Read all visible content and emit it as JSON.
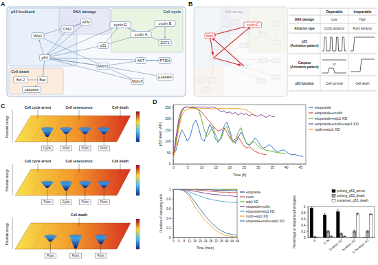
{
  "panels": {
    "A": {
      "label": "A",
      "modules": [
        "p53 feedback",
        "DNA damage",
        "Cell cycle",
        "Cell death"
      ],
      "nodes": [
        "ATM",
        "Chk2",
        "Wip1",
        "cyclin E",
        "cyclin A",
        "cyclin B",
        "E2F1",
        "p21",
        "AKT",
        "PTEN",
        "p53",
        "Mdm2",
        "p14ARF",
        "MdmX",
        "Bcl-2",
        "Bax",
        "caspase"
      ]
    },
    "B": {
      "label": "B",
      "modules": [
        "DNA damage"
      ],
      "nodes": [
        "cyclin E",
        "Wip1"
      ],
      "table": {
        "columns": [
          "Reparable",
          "Irreparable"
        ],
        "rows": [
          {
            "label": [
              "DNA damage"
            ],
            "cells": [
              "Low",
              "High"
            ]
          },
          {
            "label": [
              "Attractor type"
            ],
            "cells": [
              "Cyclic attractor",
              "Point attractor"
            ]
          },
          {
            "label": [
              "p53",
              "(Activation pattern)"
            ]
          },
          {
            "label": [
              "Caspase",
              "(Activation pattern)"
            ],
            "between": "or"
          },
          {
            "label": [
              "p53 function"
            ],
            "cells": [
              "Cell survival",
              "Cell death"
            ]
          }
        ]
      }
    },
    "C": {
      "label": "C",
      "axis_label": "Potential energy",
      "landscapes": [
        {
          "phenotypes": [
            "Cell cycle arrest",
            "Cell senescence",
            "Cell death"
          ],
          "attractors": [
            "Cycle",
            "Point",
            "Point",
            "Point"
          ]
        },
        {
          "phenotypes": [
            "Cell cycle arrest",
            "Cell senescence",
            "Cell death"
          ],
          "attractors": [
            "Point",
            "Cycle",
            "Point",
            "Point"
          ]
        },
        {
          "phenotypes": [
            "Cell death"
          ],
          "attractors": [
            "Point",
            "Point",
            "Point"
          ]
        }
      ]
    },
    "D": {
      "label": "D"
    }
  },
  "chart_data": [
    {
      "type": "line",
      "x_label": "Time [h]",
      "y_label": "p53 level [AU]",
      "xlim": [
        0,
        47
      ],
      "ylim": [
        0,
        262
      ],
      "xticks": [
        0,
        5,
        10,
        15,
        20,
        25,
        30,
        35,
        40,
        45
      ],
      "yticks": [
        0,
        50,
        100,
        150,
        200,
        250
      ],
      "legend": "right",
      "x": [
        0,
        1,
        2,
        3,
        4,
        5,
        6,
        7,
        8,
        9,
        10,
        11,
        12,
        13,
        14,
        15,
        16,
        17,
        18,
        19,
        20,
        21,
        22,
        23,
        24,
        25,
        26,
        27,
        28,
        29,
        30,
        31,
        32,
        33,
        34,
        35,
        36,
        37,
        38,
        39,
        40,
        41,
        42,
        43,
        44,
        45,
        46
      ],
      "series": [
        {
          "name": "etoposide",
          "color": "#3a75c4",
          "values": [
            40,
            60,
            110,
            150,
            130,
            100,
            120,
            170,
            195,
            160,
            110,
            100,
            140,
            175,
            150,
            110,
            95,
            120,
            165,
            185,
            150,
            105,
            90,
            115,
            140,
            120,
            90,
            80,
            95,
            115,
            100,
            80,
            70,
            75,
            85,
            75,
            60,
            55,
            58,
            62,
            55,
            45,
            40,
            42,
            38,
            35,
            32
          ]
        },
        {
          "name": "etoposide+nutlin",
          "color": "#d9453d",
          "values": [
            30,
            100,
            180,
            230,
            250,
            252,
            250,
            248,
            245,
            240,
            230,
            215,
            200,
            185,
            170,
            155,
            145,
            150,
            160,
            140,
            115,
            100,
            110,
            120,
            100,
            80,
            70,
            75,
            65,
            55,
            50,
            45,
            42,
            40,
            null,
            null,
            null,
            null,
            null,
            null,
            null,
            null,
            null,
            null,
            null,
            null,
            null
          ]
        },
        {
          "name": "etoposide+wip1 KD",
          "color": "#66b032",
          "values": [
            40,
            90,
            170,
            230,
            250,
            252,
            250,
            250,
            248,
            240,
            200,
            150,
            120,
            140,
            165,
            130,
            100,
            110,
            150,
            165,
            130,
            95,
            100,
            140,
            160,
            120,
            90,
            85,
            100,
            95,
            80,
            70,
            65,
            60,
            58,
            55,
            52,
            50,
            48,
            45,
            45,
            null,
            null,
            null,
            null,
            null,
            null
          ]
        },
        {
          "name": "etoposide+nutlin+wip1 KD",
          "color": "#7e3f98",
          "values": [
            30,
            120,
            200,
            240,
            250,
            252,
            251,
            252,
            250,
            252,
            251,
            252,
            250,
            251,
            252,
            248,
            240,
            230,
            235,
            225,
            230,
            220,
            228,
            215,
            225,
            218,
            222,
            212,
            220,
            215,
            210,
            218,
            212,
            205,
            215,
            210,
            208,
            null,
            null,
            null,
            null,
            null,
            null,
            null,
            null,
            null,
            null
          ]
        },
        {
          "name": "nutlin+wip1 KD",
          "color": "#f39a2b",
          "values": [
            20,
            80,
            160,
            210,
            235,
            242,
            245,
            244,
            246,
            243,
            245,
            244,
            246,
            245,
            243,
            245,
            244,
            246,
            245,
            243,
            245,
            244,
            246,
            245,
            243,
            242,
            238,
            230,
            220,
            212,
            null,
            null,
            null,
            null,
            null,
            null,
            null,
            null,
            null,
            null,
            null,
            null,
            null,
            null,
            null,
            null,
            null
          ]
        }
      ]
    },
    {
      "type": "line",
      "x_label": "Time (hour)",
      "y_label": "Fraction of surviving cells",
      "xlim": [
        0,
        48
      ],
      "ylim": [
        0,
        1
      ],
      "xticks": [
        0,
        4,
        8,
        12,
        16,
        20,
        24,
        28,
        32,
        36,
        40,
        44,
        48
      ],
      "yticks": [
        0,
        0.2,
        0.4,
        0.6,
        0.8,
        1
      ],
      "legend": "right",
      "x": [
        0,
        4,
        8,
        12,
        16,
        20,
        24,
        28,
        32,
        36,
        40,
        44,
        48
      ],
      "series": [
        {
          "name": "etoposide",
          "color": "#1f3f99",
          "values": [
            1,
            1,
            1,
            1,
            1,
            0.99,
            0.99,
            0.99,
            0.98,
            0.98,
            0.98,
            0.97,
            0.97
          ]
        },
        {
          "name": "nutlin",
          "color": "#d9453d",
          "values": [
            1,
            1,
            1,
            0.99,
            0.99,
            0.98,
            0.97,
            0.96,
            0.95,
            0.94,
            0.94,
            0.93,
            0.93
          ]
        },
        {
          "name": "wip1 KD",
          "color": "#66b032",
          "values": [
            1,
            1,
            1,
            1,
            1,
            1,
            1,
            1,
            1,
            1,
            0.99,
            0.99,
            0.99
          ]
        },
        {
          "name": "etoposide+nutlin",
          "color": "#7e3f98",
          "values": [
            1,
            1,
            0.99,
            0.98,
            0.96,
            0.94,
            0.92,
            0.9,
            0.89,
            0.88,
            0.87,
            0.86,
            0.85
          ]
        },
        {
          "name": "etoposide+wip1 KD",
          "color": "#4bacc6",
          "values": [
            1,
            1,
            0.98,
            0.95,
            0.9,
            0.86,
            0.82,
            0.79,
            0.77,
            0.75,
            0.74,
            0.73,
            0.72
          ]
        },
        {
          "name": "nutlin+wip1 KD",
          "color": "#f39a2b",
          "values": [
            1,
            1,
            0.97,
            0.85,
            0.65,
            0.5,
            0.35,
            0.25,
            0.15,
            0.08,
            0.04,
            0.02,
            0.01
          ]
        },
        {
          "name": "etoposide+nutlin+wip1 KD",
          "color": "#2e75b6",
          "values": [
            1,
            1,
            0.98,
            0.9,
            0.75,
            0.6,
            0.45,
            0.32,
            0.22,
            0.14,
            0.09,
            0.06,
            0.05
          ]
        }
      ]
    },
    {
      "type": "bar",
      "y_label": "Percentage of response phenotypes",
      "ylim": [
        0,
        1
      ],
      "yticks": [
        0,
        0.2,
        0.4,
        0.6,
        0.8,
        1
      ],
      "legend": "top-right",
      "categories": [
        "E",
        "E+N",
        "E+Wip1 KD",
        "N+Wip1 KD",
        "E+N+Wip1 KD"
      ],
      "series": [
        {
          "name": "pulsing_p53_arrest",
          "color": "#000000",
          "values": [
            0.95,
            0.73,
            0.83,
            0,
            0
          ],
          "errors": [
            0.03,
            0.05,
            0.06,
            0,
            0
          ]
        },
        {
          "name": "pulsing_p53_death",
          "color": "#a6a6a6",
          "values": [
            0.02,
            0.2,
            0.12,
            0.2,
            0.2
          ],
          "errors": [
            0.01,
            0.03,
            0.03,
            0.04,
            0.03
          ]
        },
        {
          "name": "sustained_p53_death",
          "color": "#ffffff",
          "values": [
            0,
            0.04,
            0.04,
            0.76,
            0.75
          ],
          "errors": [
            0,
            0.01,
            0.01,
            0.03,
            0.02
          ]
        }
      ]
    }
  ]
}
